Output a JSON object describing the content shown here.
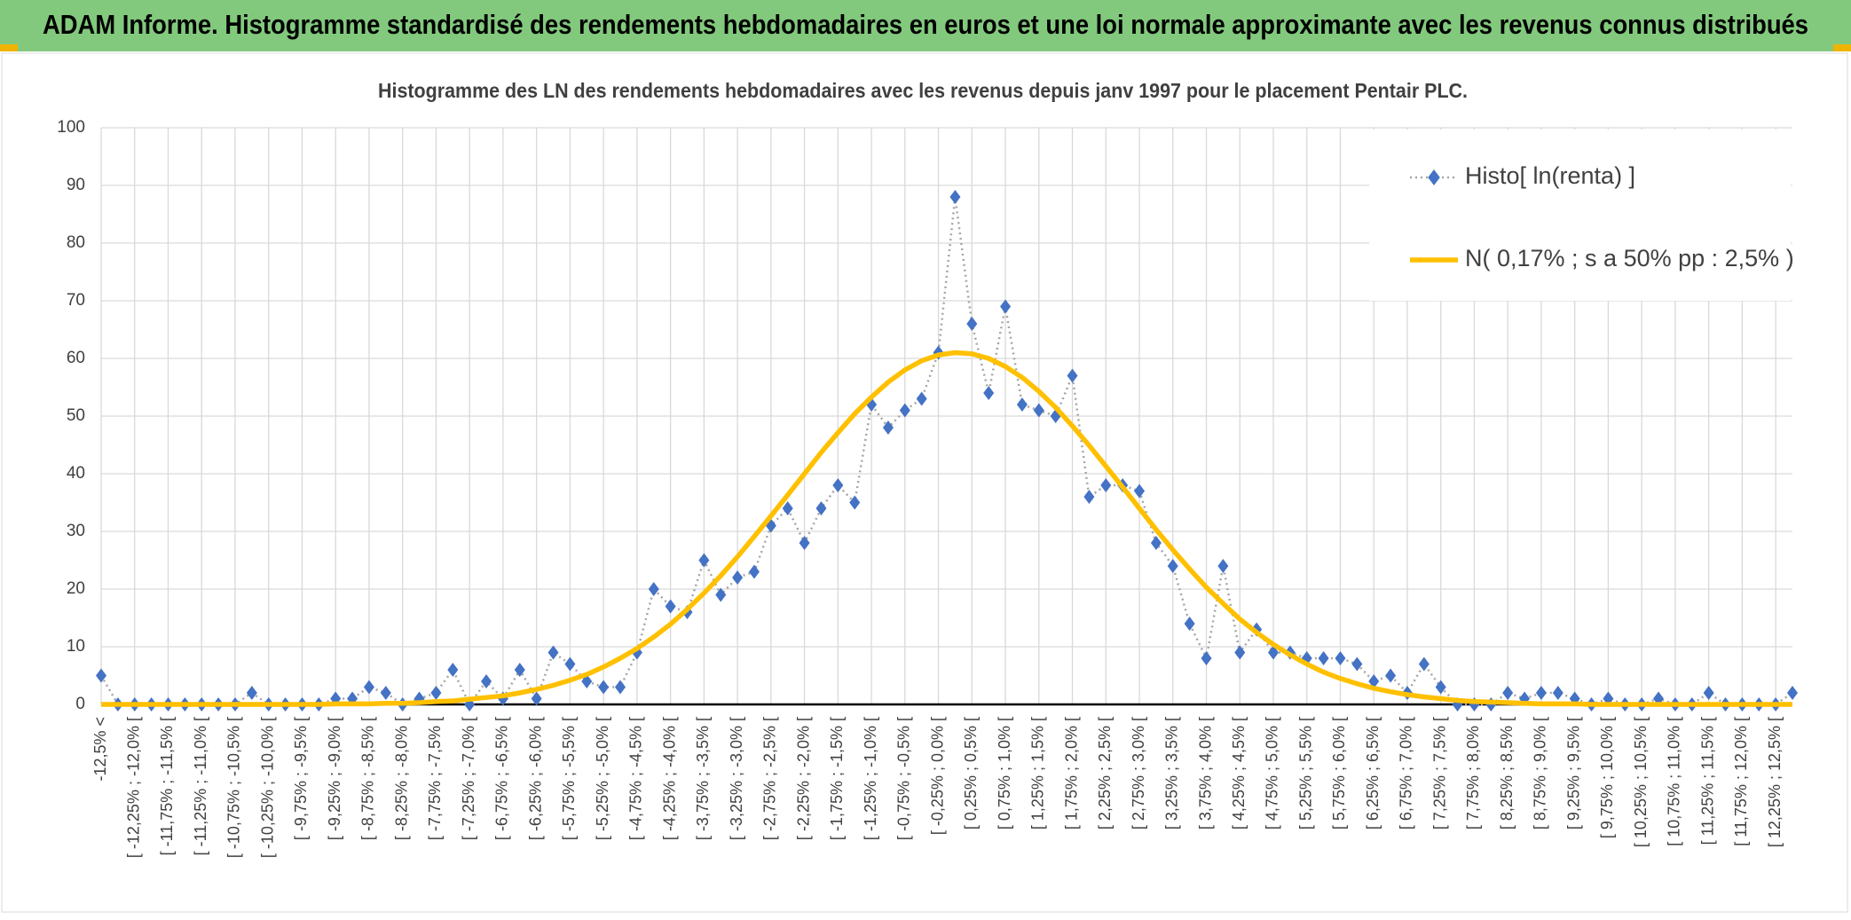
{
  "title": "ADAM Informe. Histogramme standardisé des rendements hebdomadaires en euros et une loi normale approximante avec les revenus connus distribués",
  "chart_data": {
    "type": "line",
    "title": "Histogramme des LN des rendements hebdomadaires avec les revenus depuis janv 1997 pour le placement Pentair PLC.",
    "categories": [
      "-12,5% <",
      null,
      "[ -12,25% ; -12,0% [",
      null,
      "[ -11,75% ; -11,5% [",
      null,
      "[ -11,25% ; -11,0% [",
      null,
      "[ -10,75% ; -10,5% [",
      null,
      "[ -10,25% ; -10,0% [",
      null,
      "[ -9,75% ; -9,5% [",
      null,
      "[ -9,25% ; -9,0% [",
      null,
      "[ -8,75% ; -8,5% [",
      null,
      "[ -8,25% ; -8,0% [",
      null,
      "[ -7,75% ; -7,5% [",
      null,
      "[ -7,25% ; -7,0% [",
      null,
      "[ -6,75% ; -6,5% [",
      null,
      "[ -6,25% ; -6,0% [",
      null,
      "[ -5,75% ; -5,5% [",
      null,
      "[ -5,25% ; -5,0% [",
      null,
      "[ -4,75% ; -4,5% [",
      null,
      "[ -4,25% ; -4,0% [",
      null,
      "[ -3,75% ; -3,5% [",
      null,
      "[ -3,25% ; -3,0% [",
      null,
      "[ -2,75% ; -2,5% [",
      null,
      "[ -2,25% ; -2,0% [",
      null,
      "[ -1,75% ; -1,5% [",
      null,
      "[ -1,25% ; -1,0% [",
      null,
      "[ -0,75% ; -0,5% [",
      null,
      "[ -0,25% ; 0,0% [",
      null,
      "[ 0,25% ; 0,5% [",
      null,
      "[ 0,75% ; 1,0% [",
      null,
      "[ 1,25% ; 1,5% [",
      null,
      "[ 1,75% ; 2,0% [",
      null,
      "[ 2,25% ; 2,5% [",
      null,
      "[ 2,75% ; 3,0% [",
      null,
      "[ 3,25% ; 3,5% [",
      null,
      "[ 3,75% ; 4,0% [",
      null,
      "[ 4,25% ; 4,5% [",
      null,
      "[ 4,75% ; 5,0% [",
      null,
      "[ 5,25% ; 5,5% [",
      null,
      "[ 5,75% ; 6,0% [",
      null,
      "[ 6,25% ; 6,5% [",
      null,
      "[ 6,75% ; 7,0% [",
      null,
      "[ 7,25% ; 7,5% [",
      null,
      "[ 7,75% ; 8,0% [",
      null,
      "[ 8,25% ; 8,5% [",
      null,
      "[ 8,75% ; 9,0% [",
      null,
      "[ 9,25% ; 9,5% [",
      null,
      "[ 9,75% ; 10,0% [",
      null,
      "[ 10,25% ; 10,5% [",
      null,
      "[ 10,75% ; 11,0% [",
      null,
      "[ 11,25% ; 11,5% [",
      null,
      "[ 11,75% ; 12,0% [",
      null,
      "[ 12,25% ; 12,5% [",
      null
    ],
    "series": [
      {
        "name": "Histo[ ln(renta) ]",
        "color": "#4472c4",
        "marker": "diamond",
        "values": [
          5,
          0,
          0,
          0,
          0,
          0,
          0,
          0,
          0,
          2,
          0,
          0,
          0,
          0,
          1,
          1,
          3,
          2,
          0,
          1,
          2,
          6,
          0,
          4,
          1,
          6,
          1,
          9,
          7,
          4,
          3,
          3,
          9,
          20,
          17,
          16,
          25,
          19,
          22,
          23,
          31,
          34,
          28,
          34,
          38,
          35,
          52,
          48,
          51,
          53,
          61,
          88,
          66,
          54,
          69,
          52,
          51,
          50,
          57,
          36,
          38,
          38,
          37,
          28,
          24,
          14,
          8,
          24,
          9,
          13,
          9,
          9,
          8,
          8,
          8,
          7,
          4,
          5,
          2,
          7,
          3,
          0,
          0,
          0,
          2,
          1,
          2,
          2,
          1,
          0,
          1,
          0,
          0,
          1,
          0,
          0,
          2,
          0,
          0,
          0,
          0,
          2
        ]
      },
      {
        "name": "N( 0,17% ; s a 50% pp : 2,5% )",
        "color": "#ffc000",
        "values": [
          0,
          0,
          0,
          0,
          0,
          0,
          0,
          0,
          0,
          0,
          0,
          0,
          0,
          0,
          0.1,
          0.1,
          0.1,
          0.2,
          0.2,
          0.3,
          0.5,
          0.6,
          0.9,
          1.2,
          1.5,
          2,
          2.6,
          3.3,
          4.2,
          5.2,
          6.5,
          8,
          9.7,
          11.7,
          13.9,
          16.5,
          19.3,
          22.3,
          25.6,
          29.1,
          32.7,
          36.3,
          40,
          43.7,
          47.1,
          50.4,
          53.3,
          55.9,
          58,
          59.6,
          60.6,
          61,
          60.8,
          60,
          58.6,
          56.7,
          54.3,
          51.5,
          48.3,
          44.9,
          41.3,
          37.7,
          34,
          30.3,
          26.8,
          23.5,
          20.3,
          17.5,
          14.8,
          12.5,
          10.4,
          8.6,
          7,
          5.6,
          4.5,
          3.6,
          2.8,
          2.2,
          1.7,
          1.3,
          1,
          0.7,
          0.5,
          0.4,
          0.3,
          0.2,
          0.1,
          0.1,
          0.1,
          0,
          0,
          0,
          0,
          0,
          0,
          0,
          0,
          0,
          0,
          0,
          0,
          0
        ]
      }
    ],
    "ylim": [
      0,
      100
    ],
    "yticks": [
      0,
      10,
      20,
      30,
      40,
      50,
      60,
      70,
      80,
      90,
      100
    ],
    "grid": true,
    "legend": "top-right"
  }
}
